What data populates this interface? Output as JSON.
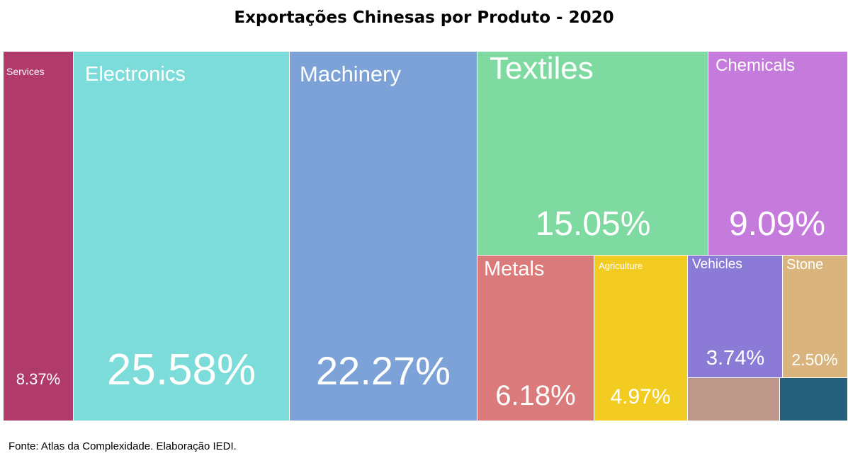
{
  "title": "Exportações Chinesas por Produto - 2020",
  "source": "Fonte: Atlas da Complexidade. Elaboração IEDI.",
  "chart_data": {
    "type": "treemap",
    "title": "Exportações Chinesas por Produto - 2020",
    "unit": "%",
    "items": [
      {
        "name": "Services",
        "value": 8.37,
        "value_label": "8.37%",
        "color": "#b03a6a"
      },
      {
        "name": "Electronics",
        "value": 25.58,
        "value_label": "25.58%",
        "color": "#7cdcd9"
      },
      {
        "name": "Machinery",
        "value": 22.27,
        "value_label": "22.27%",
        "color": "#7ca2d8"
      },
      {
        "name": "Textiles",
        "value": 15.05,
        "value_label": "15.05%",
        "color": "#7fdaa1"
      },
      {
        "name": "Chemicals",
        "value": 9.09,
        "value_label": "9.09%",
        "color": "#c57bdb"
      },
      {
        "name": "Metals",
        "value": 6.18,
        "value_label": "6.18%",
        "color": "#da7a7a"
      },
      {
        "name": "Agriculture",
        "value": 4.97,
        "value_label": "4.97%",
        "color": "#f3cc21"
      },
      {
        "name": "Vehicles",
        "value": 3.74,
        "value_label": "3.74%",
        "color": "#8b7bd6"
      },
      {
        "name": "Stone",
        "value": 2.5,
        "value_label": "2.50%",
        "color": "#d9b47c"
      },
      {
        "name": "",
        "value": null,
        "value_label": "",
        "color": "#bd978a"
      },
      {
        "name": "",
        "value": null,
        "value_label": "",
        "color": "#27607c"
      }
    ]
  }
}
